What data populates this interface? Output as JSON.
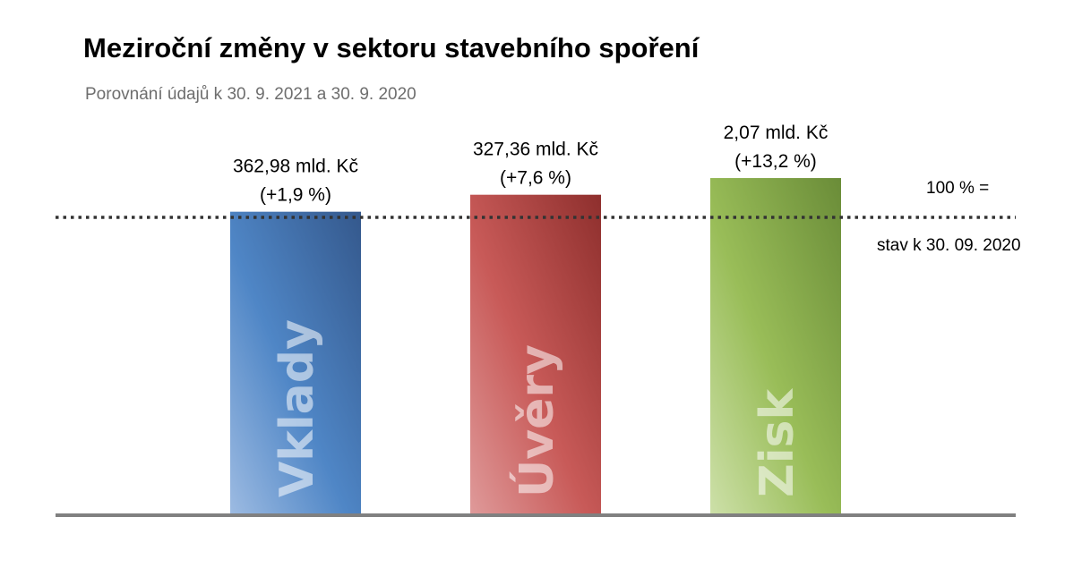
{
  "header": {
    "title": "Meziroční změny v sektoru stavebního spoření",
    "subtitle": "Porovnání údajů k 30. 9. 2021 a 30. 9. 2020"
  },
  "reference": {
    "label_top": "100 % =",
    "label_bottom": "stav k 30. 09. 2020",
    "value_percent": 100
  },
  "chart_data": {
    "type": "bar",
    "title": "Meziroční změny v sektoru stavebního spoření",
    "subtitle": "Porovnání údajů k 30. 9. 2021 a 30. 9. 2020",
    "categories": [
      "Vklady",
      "Úvěry",
      "Zisk"
    ],
    "values": [
      101.9,
      107.6,
      113.2
    ],
    "changes_percent": [
      1.9,
      7.6,
      13.2
    ],
    "data_labels": [
      {
        "amount": "362,98 mld. Kč",
        "change": "(+1,9 %)"
      },
      {
        "amount": "327,36 mld. Kč",
        "change": "(+7,6 %)"
      },
      {
        "amount": "2,07 mld. Kč",
        "change": "(+13,2 %)"
      }
    ],
    "colors": [
      "#4a7fc1",
      "#c0504d",
      "#8db04f"
    ],
    "reference_line": 100,
    "xlabel": "",
    "ylabel": "",
    "grid": false
  }
}
